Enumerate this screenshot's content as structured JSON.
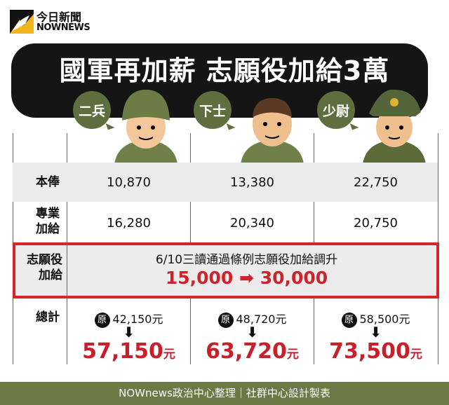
{
  "logo": {
    "chinese": "今日新聞",
    "english": "NOWNEWS"
  },
  "title": "國軍再加薪 志願役加給3萬",
  "ranks": [
    "二兵",
    "下士",
    "少尉"
  ],
  "rows": [
    {
      "label": "本俸",
      "values": [
        "10,870",
        "13,380",
        "22,750"
      ]
    },
    {
      "label": "專業\n加給",
      "values": [
        "16,280",
        "20,340",
        "20,750"
      ]
    }
  ],
  "volunteer": {
    "label": "志願役\n加給",
    "note": "6/10三讀通過條例志願役加給調升",
    "from": "15,000",
    "arrow": "➡",
    "to": "30,000"
  },
  "total": {
    "label": "總計",
    "badge": "原",
    "original": [
      "42,150元",
      "48,720元",
      "58,500元"
    ],
    "arrow": "⬇",
    "new": [
      "57,150",
      "63,720",
      "73,500"
    ],
    "unit": "元"
  },
  "footer": "NOWnews政治中心整理｜社群中心設計製表",
  "colors": {
    "accent_red": "#d8232a",
    "olive": "#6b7a45",
    "banner": "#151515"
  }
}
